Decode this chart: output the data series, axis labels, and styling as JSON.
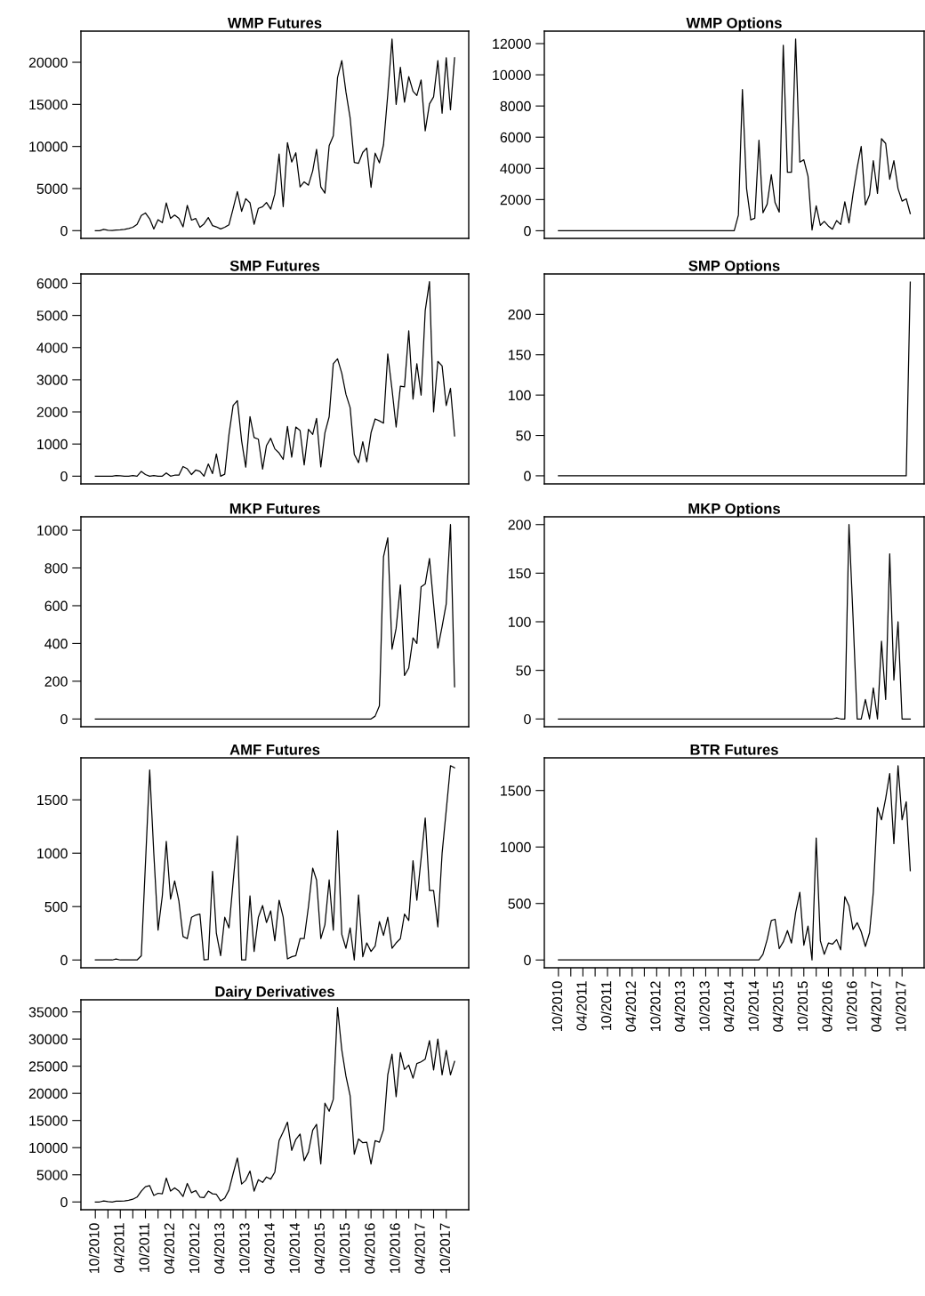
{
  "chart_data": [
    {
      "type": "line",
      "title": "WMP Futures",
      "color": "#000000",
      "tick_labels": "y",
      "xlim": [
        "2010-06-18",
        "2018-03-14"
      ],
      "ylim": [
        -920,
        23700
      ],
      "yticks": [
        0,
        5000,
        10000,
        15000,
        20000
      ],
      "x": [
        "2010-10",
        "2010-11",
        "2010-12",
        "2011-01",
        "2011-02",
        "2011-03",
        "2011-04",
        "2011-05",
        "2011-06",
        "2011-07",
        "2011-08",
        "2011-09",
        "2011-10",
        "2011-11",
        "2011-12",
        "2012-01",
        "2012-02",
        "2012-03",
        "2012-04",
        "2012-05",
        "2012-06",
        "2012-07",
        "2012-08",
        "2012-09",
        "2012-10",
        "2012-11",
        "2012-12",
        "2013-01",
        "2013-02",
        "2013-03",
        "2013-04",
        "2013-05",
        "2013-06",
        "2013-07",
        "2013-08",
        "2013-09",
        "2013-10",
        "2013-11",
        "2013-12",
        "2014-01",
        "2014-02",
        "2014-03",
        "2014-04",
        "2014-05",
        "2014-06",
        "2014-07",
        "2014-08",
        "2014-09",
        "2014-10",
        "2014-11",
        "2014-12",
        "2015-01",
        "2015-02",
        "2015-03",
        "2015-04",
        "2015-05",
        "2015-06",
        "2015-07",
        "2015-08",
        "2015-09",
        "2015-10",
        "2015-11",
        "2015-12",
        "2016-01",
        "2016-02",
        "2016-03",
        "2016-04",
        "2016-05",
        "2016-06",
        "2016-07",
        "2016-08",
        "2016-09",
        "2016-10",
        "2016-11",
        "2016-12",
        "2017-01",
        "2017-02",
        "2017-03",
        "2017-04",
        "2017-05",
        "2017-06",
        "2017-07",
        "2017-08",
        "2017-09",
        "2017-10",
        "2017-11",
        "2017-12"
      ],
      "values": [
        0,
        0,
        150,
        50,
        30,
        80,
        100,
        150,
        250,
        400,
        750,
        1800,
        2100,
        1400,
        200,
        1300,
        950,
        3300,
        1450,
        1850,
        1450,
        450,
        3000,
        1250,
        1450,
        400,
        800,
        1550,
        600,
        450,
        200,
        400,
        700,
        2600,
        4650,
        2300,
        3800,
        3300,
        750,
        2650,
        2850,
        3350,
        2550,
        4350,
        9100,
        2850,
        10450,
        8150,
        9250,
        5200,
        5800,
        5400,
        7100,
        9650,
        5200,
        4450,
        10100,
        11250,
        18200,
        20200,
        16500,
        13350,
        8100,
        8000,
        9300,
        9800,
        5150,
        9200,
        8050,
        10200,
        16150,
        22750,
        15000,
        19400,
        15250,
        18300,
        16550,
        16050,
        17900,
        11850,
        15050,
        15900,
        20200,
        13950,
        20550,
        14350,
        20550
      ]
    },
    {
      "type": "line",
      "title": "WMP Options",
      "color": "#000000",
      "tick_labels": "y",
      "xlim": [
        "2010-06-18",
        "2018-03-14"
      ],
      "ylim": [
        -490,
        12800
      ],
      "yticks": [
        0,
        2000,
        4000,
        6000,
        8000,
        10000,
        12000
      ],
      "x": [
        "2010-10",
        "2014-05",
        "2014-06",
        "2014-07",
        "2014-08",
        "2014-09",
        "2014-10",
        "2014-11",
        "2014-12",
        "2015-01",
        "2015-02",
        "2015-03",
        "2015-04",
        "2015-05",
        "2015-06",
        "2015-07",
        "2015-08",
        "2015-09",
        "2015-10",
        "2015-11",
        "2015-12",
        "2016-01",
        "2016-02",
        "2016-03",
        "2016-04",
        "2016-05",
        "2016-06",
        "2016-07",
        "2016-08",
        "2016-09",
        "2016-10",
        "2016-11",
        "2016-12",
        "2017-01",
        "2017-02",
        "2017-03",
        "2017-04",
        "2017-05",
        "2017-06",
        "2017-07",
        "2017-08",
        "2017-09",
        "2017-10",
        "2017-11",
        "2017-12"
      ],
      "values": [
        0,
        0,
        1000,
        9050,
        2700,
        700,
        800,
        5800,
        1150,
        1700,
        3600,
        1800,
        1200,
        11900,
        3750,
        3750,
        12300,
        4400,
        4550,
        3500,
        50,
        1600,
        350,
        600,
        300,
        100,
        650,
        400,
        1850,
        500,
        2350,
        4050,
        5400,
        1650,
        2300,
        4500,
        2400,
        5900,
        5600,
        3300,
        4500,
        2700,
        1900,
        2050,
        1100
      ]
    },
    {
      "type": "line",
      "title": "SMP Futures",
      "color": "#000000",
      "tick_labels": "y",
      "xlim": [
        "2010-06-18",
        "2018-03-14"
      ],
      "ylim": [
        -240,
        6290
      ],
      "yticks": [
        0,
        1000,
        2000,
        3000,
        4000,
        5000,
        6000
      ],
      "x": [
        "2010-10",
        "2010-11",
        "2010-12",
        "2011-01",
        "2011-02",
        "2011-03",
        "2011-04",
        "2011-05",
        "2011-06",
        "2011-07",
        "2011-08",
        "2011-09",
        "2011-10",
        "2011-11",
        "2011-12",
        "2012-01",
        "2012-02",
        "2012-03",
        "2012-04",
        "2012-05",
        "2012-06",
        "2012-07",
        "2012-08",
        "2012-09",
        "2012-10",
        "2012-11",
        "2012-12",
        "2013-01",
        "2013-02",
        "2013-03",
        "2013-04",
        "2013-05",
        "2013-06",
        "2013-07",
        "2013-08",
        "2013-09",
        "2013-10",
        "2013-11",
        "2013-12",
        "2014-01",
        "2014-02",
        "2014-03",
        "2014-04",
        "2014-05",
        "2014-06",
        "2014-07",
        "2014-08",
        "2014-09",
        "2014-10",
        "2014-11",
        "2014-12",
        "2015-01",
        "2015-02",
        "2015-03",
        "2015-04",
        "2015-05",
        "2015-06",
        "2015-07",
        "2015-08",
        "2015-09",
        "2015-10",
        "2015-11",
        "2015-12",
        "2016-01",
        "2016-02",
        "2016-03",
        "2016-04",
        "2016-05",
        "2016-06",
        "2016-07",
        "2016-08",
        "2016-09",
        "2016-10",
        "2016-11",
        "2016-12",
        "2017-01",
        "2017-02",
        "2017-03",
        "2017-04",
        "2017-05",
        "2017-06",
        "2017-07",
        "2017-08",
        "2017-09",
        "2017-10",
        "2017-11",
        "2017-12"
      ],
      "values": [
        0,
        0,
        0,
        0,
        0,
        20,
        15,
        0,
        0,
        20,
        0,
        150,
        50,
        0,
        20,
        0,
        0,
        100,
        0,
        30,
        30,
        300,
        230,
        50,
        190,
        150,
        0,
        380,
        80,
        690,
        0,
        60,
        1300,
        2200,
        2350,
        1100,
        280,
        1850,
        1200,
        1150,
        220,
        950,
        1180,
        850,
        720,
        520,
        1550,
        590,
        1530,
        1420,
        350,
        1460,
        1300,
        1800,
        290,
        1350,
        1850,
        3500,
        3650,
        3200,
        2550,
        2130,
        680,
        420,
        1070,
        450,
        1350,
        1780,
        1720,
        1650,
        3800,
        2700,
        1530,
        2800,
        2780,
        4520,
        2400,
        3500,
        2520,
        5150,
        6050,
        2000,
        3570,
        3430,
        2200,
        2730,
        1250
      ]
    },
    {
      "type": "line",
      "title": "SMP Options",
      "color": "#000000",
      "tick_labels": "y",
      "xlim": [
        "2010-06-18",
        "2018-03-14"
      ],
      "ylim": [
        -10,
        250
      ],
      "yticks": [
        0,
        50,
        100,
        150,
        200
      ],
      "x": [
        "2010-10",
        "2017-11",
        "2017-12"
      ],
      "values": [
        0,
        0,
        240
      ]
    },
    {
      "type": "line",
      "title": "MKP Futures",
      "color": "#000000",
      "tick_labels": "y",
      "xlim": [
        "2010-06-18",
        "2018-03-14"
      ],
      "ylim": [
        -41,
        1071
      ],
      "yticks": [
        0,
        200,
        400,
        600,
        800,
        1000
      ],
      "x": [
        "2010-10",
        "2016-04",
        "2016-05",
        "2016-06",
        "2016-07",
        "2016-08",
        "2016-09",
        "2016-10",
        "2016-11",
        "2016-12",
        "2017-01",
        "2017-02",
        "2017-03",
        "2017-04",
        "2017-05",
        "2017-06",
        "2017-07",
        "2017-08",
        "2017-09",
        "2017-10",
        "2017-11",
        "2017-12"
      ],
      "values": [
        0,
        0,
        15,
        70,
        860,
        960,
        370,
        480,
        710,
        230,
        270,
        430,
        400,
        700,
        715,
        850,
        610,
        375,
        490,
        610,
        1030,
        170
      ]
    },
    {
      "type": "line",
      "title": "MKP Options",
      "color": "#000000",
      "tick_labels": "y",
      "xlim": [
        "2010-06-18",
        "2018-03-14"
      ],
      "ylim": [
        -8,
        208
      ],
      "yticks": [
        0,
        50,
        100,
        150,
        200
      ],
      "x": [
        "2010-10",
        "2016-05",
        "2016-06",
        "2016-07",
        "2016-08",
        "2016-09",
        "2016-10",
        "2016-11",
        "2016-12",
        "2017-01",
        "2017-02",
        "2017-03",
        "2017-04",
        "2017-05",
        "2017-06",
        "2017-07",
        "2017-08",
        "2017-09",
        "2017-10",
        "2017-11",
        "2017-12"
      ],
      "values": [
        0,
        0,
        1,
        0,
        0,
        200,
        105,
        0,
        0,
        20,
        0,
        32,
        0,
        80,
        20,
        170,
        40,
        100,
        0,
        0,
        0
      ]
    },
    {
      "type": "line",
      "title": "AMF Futures",
      "color": "#000000",
      "tick_labels": "y",
      "xlim": [
        "2010-06-18",
        "2018-03-14"
      ],
      "ylim": [
        -73,
        1893
      ],
      "yticks": [
        0,
        500,
        1000,
        1500
      ],
      "x": [
        "2010-10",
        "2010-11",
        "2010-12",
        "2011-01",
        "2011-02",
        "2011-03",
        "2011-04",
        "2011-05",
        "2011-06",
        "2011-07",
        "2011-08",
        "2011-09",
        "2011-10",
        "2011-11",
        "2011-12",
        "2012-01",
        "2012-02",
        "2012-03",
        "2012-04",
        "2012-05",
        "2012-06",
        "2012-07",
        "2012-08",
        "2012-09",
        "2012-10",
        "2012-11",
        "2012-12",
        "2013-01",
        "2013-02",
        "2013-03",
        "2013-04",
        "2013-05",
        "2013-06",
        "2013-07",
        "2013-08",
        "2013-09",
        "2013-10",
        "2013-11",
        "2013-12",
        "2014-01",
        "2014-02",
        "2014-03",
        "2014-04",
        "2014-05",
        "2014-06",
        "2014-07",
        "2014-08",
        "2014-09",
        "2014-10",
        "2014-11",
        "2014-12",
        "2015-01",
        "2015-02",
        "2015-03",
        "2015-04",
        "2015-05",
        "2015-06",
        "2015-07",
        "2015-08",
        "2015-09",
        "2015-10",
        "2015-11",
        "2015-12",
        "2016-01",
        "2016-02",
        "2016-03",
        "2016-04",
        "2016-05",
        "2016-06",
        "2016-07",
        "2016-08",
        "2016-09",
        "2016-10",
        "2016-11",
        "2016-12",
        "2017-01",
        "2017-02",
        "2017-03",
        "2017-04",
        "2017-05",
        "2017-06",
        "2017-07",
        "2017-08",
        "2017-09",
        "2017-10",
        "2017-11",
        "2017-12"
      ],
      "values": [
        0,
        0,
        0,
        0,
        0,
        10,
        0,
        0,
        0,
        0,
        0,
        40,
        900,
        1780,
        1000,
        280,
        600,
        1110,
        570,
        740,
        550,
        220,
        200,
        400,
        420,
        430,
        0,
        5,
        830,
        250,
        40,
        400,
        300,
        730,
        1160,
        0,
        0,
        600,
        80,
        400,
        510,
        350,
        460,
        180,
        560,
        400,
        10,
        30,
        40,
        200,
        200,
        500,
        860,
        750,
        200,
        330,
        750,
        280,
        1210,
        240,
        110,
        300,
        0,
        610,
        30,
        160,
        80,
        130,
        360,
        230,
        400,
        110,
        160,
        200,
        430,
        370,
        930,
        560,
        950,
        1330,
        650,
        650,
        310,
        1000,
        1400,
        1820,
        1800
      ]
    },
    {
      "type": "line",
      "title": "BTR Futures",
      "color": "#000000",
      "xlim": [
        "2010-06-18",
        "2018-03-14"
      ],
      "ylim": [
        -69,
        1789
      ],
      "yticks": [
        0,
        500,
        1000,
        1500
      ],
      "xticks": [
        {
          "value": "2010-10",
          "label": "10/2010"
        },
        {
          "value": "2011-01",
          "label": null
        },
        {
          "value": "2011-04",
          "label": "04/2011"
        },
        {
          "value": "2011-07",
          "label": null
        },
        {
          "value": "2011-10",
          "label": "10/2011"
        },
        {
          "value": "2012-01",
          "label": null
        },
        {
          "value": "2012-04",
          "label": "04/2012"
        },
        {
          "value": "2012-07",
          "label": null
        },
        {
          "value": "2012-10",
          "label": "10/2012"
        },
        {
          "value": "2013-01",
          "label": null
        },
        {
          "value": "2013-04",
          "label": "04/2013"
        },
        {
          "value": "2013-07",
          "label": null
        },
        {
          "value": "2013-10",
          "label": "10/2013"
        },
        {
          "value": "2014-01",
          "label": null
        },
        {
          "value": "2014-04",
          "label": "04/2014"
        },
        {
          "value": "2014-07",
          "label": null
        },
        {
          "value": "2014-10",
          "label": "10/2014"
        },
        {
          "value": "2015-01",
          "label": null
        },
        {
          "value": "2015-04",
          "label": "04/2015"
        },
        {
          "value": "2015-07",
          "label": null
        },
        {
          "value": "2015-10",
          "label": "10/2015"
        },
        {
          "value": "2016-01",
          "label": null
        },
        {
          "value": "2016-04",
          "label": "04/2016"
        },
        {
          "value": "2016-07",
          "label": null
        },
        {
          "value": "2016-10",
          "label": "10/2016"
        },
        {
          "value": "2017-01",
          "label": null
        },
        {
          "value": "2017-04",
          "label": "04/2017"
        },
        {
          "value": "2017-07",
          "label": null
        },
        {
          "value": "2017-10",
          "label": "10/2017"
        }
      ],
      "x": [
        "2010-10",
        "2014-11",
        "2014-12",
        "2015-01",
        "2015-02",
        "2015-03",
        "2015-04",
        "2015-05",
        "2015-06",
        "2015-07",
        "2015-08",
        "2015-09",
        "2015-10",
        "2015-11",
        "2015-12",
        "2016-01",
        "2016-02",
        "2016-03",
        "2016-04",
        "2016-05",
        "2016-06",
        "2016-07",
        "2016-08",
        "2016-09",
        "2016-10",
        "2016-11",
        "2016-12",
        "2017-01",
        "2017-02",
        "2017-03",
        "2017-04",
        "2017-05",
        "2017-06",
        "2017-07",
        "2017-08",
        "2017-09",
        "2017-10",
        "2017-11",
        "2017-12"
      ],
      "values": [
        0,
        0,
        50,
        180,
        350,
        360,
        100,
        160,
        260,
        150,
        420,
        600,
        130,
        300,
        0,
        1080,
        170,
        50,
        150,
        140,
        180,
        90,
        560,
        480,
        270,
        330,
        250,
        120,
        240,
        600,
        1350,
        1240,
        1430,
        1650,
        1030,
        1720,
        1240,
        1400,
        790
      ]
    },
    {
      "type": "line",
      "title": "Dairy Derivatives",
      "color": "#000000",
      "xlim": [
        "2010-06-18",
        "2018-03-14"
      ],
      "ylim": [
        -1430,
        37230
      ],
      "yticks": [
        0,
        5000,
        10000,
        15000,
        20000,
        25000,
        30000,
        35000
      ],
      "xticks": [
        {
          "value": "2010-10",
          "label": "10/2010"
        },
        {
          "value": "2011-01",
          "label": null
        },
        {
          "value": "2011-04",
          "label": "04/2011"
        },
        {
          "value": "2011-07",
          "label": null
        },
        {
          "value": "2011-10",
          "label": "10/2011"
        },
        {
          "value": "2012-01",
          "label": null
        },
        {
          "value": "2012-04",
          "label": "04/2012"
        },
        {
          "value": "2012-07",
          "label": null
        },
        {
          "value": "2012-10",
          "label": "10/2012"
        },
        {
          "value": "2013-01",
          "label": null
        },
        {
          "value": "2013-04",
          "label": "04/2013"
        },
        {
          "value": "2013-07",
          "label": null
        },
        {
          "value": "2013-10",
          "label": "10/2013"
        },
        {
          "value": "2014-01",
          "label": null
        },
        {
          "value": "2014-04",
          "label": "04/2014"
        },
        {
          "value": "2014-07",
          "label": null
        },
        {
          "value": "2014-10",
          "label": "10/2014"
        },
        {
          "value": "2015-01",
          "label": null
        },
        {
          "value": "2015-04",
          "label": "04/2015"
        },
        {
          "value": "2015-07",
          "label": null
        },
        {
          "value": "2015-10",
          "label": "10/2015"
        },
        {
          "value": "2016-01",
          "label": null
        },
        {
          "value": "2016-04",
          "label": "04/2016"
        },
        {
          "value": "2016-07",
          "label": null
        },
        {
          "value": "2016-10",
          "label": "10/2016"
        },
        {
          "value": "2017-01",
          "label": null
        },
        {
          "value": "2017-04",
          "label": "04/2017"
        },
        {
          "value": "2017-07",
          "label": null
        },
        {
          "value": "2017-10",
          "label": "10/2017"
        }
      ],
      "x": [
        "2010-10",
        "2010-11",
        "2010-12",
        "2011-01",
        "2011-02",
        "2011-03",
        "2011-04",
        "2011-05",
        "2011-06",
        "2011-07",
        "2011-08",
        "2011-09",
        "2011-10",
        "2011-11",
        "2011-12",
        "2012-01",
        "2012-02",
        "2012-03",
        "2012-04",
        "2012-05",
        "2012-06",
        "2012-07",
        "2012-08",
        "2012-09",
        "2012-10",
        "2012-11",
        "2012-12",
        "2013-01",
        "2013-02",
        "2013-03",
        "2013-04",
        "2013-05",
        "2013-06",
        "2013-07",
        "2013-08",
        "2013-09",
        "2013-10",
        "2013-11",
        "2013-12",
        "2014-01",
        "2014-02",
        "2014-03",
        "2014-04",
        "2014-05",
        "2014-06",
        "2014-07",
        "2014-08",
        "2014-09",
        "2014-10",
        "2014-11",
        "2014-12",
        "2015-01",
        "2015-02",
        "2015-03",
        "2015-04",
        "2015-05",
        "2015-06",
        "2015-07",
        "2015-08",
        "2015-09",
        "2015-10",
        "2015-11",
        "2015-12",
        "2016-01",
        "2016-02",
        "2016-03",
        "2016-04",
        "2016-05",
        "2016-06",
        "2016-07",
        "2016-08",
        "2016-09",
        "2016-10",
        "2016-11",
        "2016-12",
        "2017-01",
        "2017-02",
        "2017-03",
        "2017-04",
        "2017-05",
        "2017-06",
        "2017-07",
        "2017-08",
        "2017-09",
        "2017-10",
        "2017-11",
        "2017-12"
      ],
      "values": [
        0,
        0,
        200,
        50,
        0,
        150,
        150,
        200,
        300,
        500,
        900,
        2000,
        2800,
        3000,
        1200,
        1600,
        1500,
        4400,
        2000,
        2600,
        2000,
        1000,
        3400,
        1700,
        2100,
        900,
        800,
        2000,
        1500,
        1400,
        200,
        700,
        2200,
        5200,
        8100,
        3300,
        4000,
        5700,
        2000,
        4100,
        3600,
        4600,
        4200,
        5500,
        11300,
        12900,
        14700,
        9500,
        11500,
        12500,
        7600,
        9200,
        13200,
        14300,
        7000,
        18200,
        16700,
        18900,
        35800,
        28000,
        23200,
        19500,
        8800,
        11600,
        10900,
        11000,
        7000,
        11300,
        11000,
        13300,
        23400,
        27200,
        19400,
        27500,
        24400,
        25200,
        22800,
        25500,
        25800,
        26300,
        29700,
        24300,
        30000,
        23400,
        27900,
        23400,
        25900
      ]
    }
  ]
}
